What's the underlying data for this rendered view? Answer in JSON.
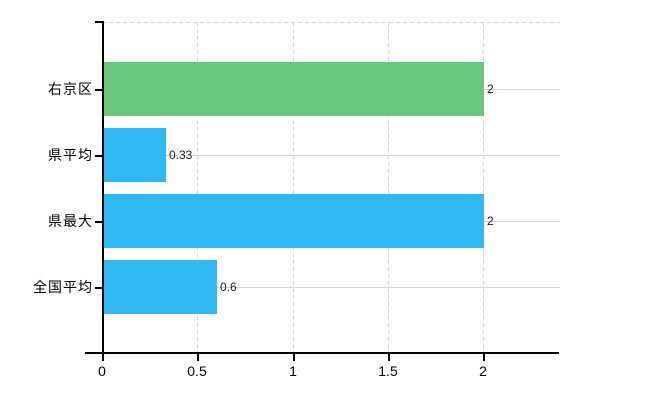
{
  "chart_data": {
    "type": "bar",
    "orientation": "horizontal",
    "title": "",
    "xlabel": "",
    "ylabel": "",
    "categories": [
      "右京区",
      "県平均",
      "県最大",
      "全国平均"
    ],
    "values": [
      2,
      0.33,
      2,
      0.6
    ],
    "value_labels": [
      "2",
      "0.33",
      "2",
      "0.6"
    ],
    "bar_colors": [
      "#69c87d",
      "#2fb8f2",
      "#2fb8f2",
      "#2fb8f2"
    ],
    "xlim": [
      0,
      2.4
    ],
    "x_ticks": [
      0,
      0.5,
      1,
      1.5,
      2
    ],
    "x_tick_labels": [
      "0",
      "0.5",
      "1",
      "1.5",
      "2"
    ],
    "grid": true,
    "legend": false
  },
  "colors": {
    "background": "#ffffff",
    "axis": "#000000",
    "vertical_gridline": "#d7d7d7",
    "horizontal_gridline": "#d2d6d2",
    "highlight_bar": "#69c87d",
    "default_bar": "#2fb8f2",
    "value_label_text": "#1a1a1a",
    "tick_label_text": "#000000"
  }
}
